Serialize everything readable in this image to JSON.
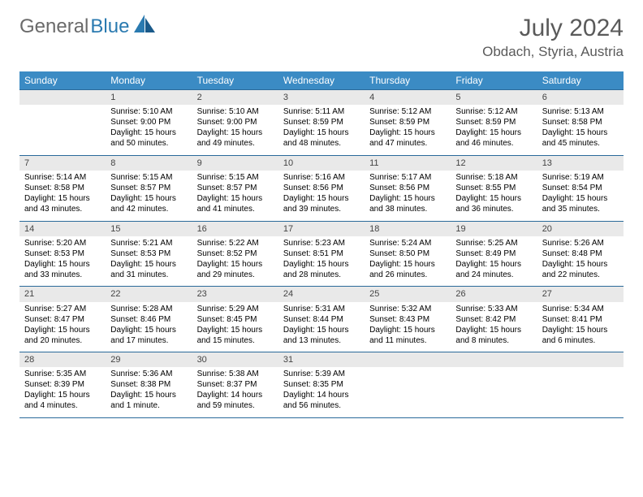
{
  "logo": {
    "part1": "General",
    "part2": "Blue"
  },
  "title": "July 2024",
  "location": "Obdach, Styria, Austria",
  "weekday_headers": [
    "Sunday",
    "Monday",
    "Tuesday",
    "Wednesday",
    "Thursday",
    "Friday",
    "Saturday"
  ],
  "header_bg": "#3b8bc4",
  "header_fg": "#ffffff",
  "daynum_bg": "#e9e9e9",
  "border_color": "#2a6a9a",
  "text_color": "#000000",
  "title_color": "#5a5a5a",
  "weeks": [
    {
      "days": [
        {
          "num": "",
          "lines": []
        },
        {
          "num": "1",
          "lines": [
            "Sunrise: 5:10 AM",
            "Sunset: 9:00 PM",
            "Daylight: 15 hours",
            "and 50 minutes."
          ]
        },
        {
          "num": "2",
          "lines": [
            "Sunrise: 5:10 AM",
            "Sunset: 9:00 PM",
            "Daylight: 15 hours",
            "and 49 minutes."
          ]
        },
        {
          "num": "3",
          "lines": [
            "Sunrise: 5:11 AM",
            "Sunset: 8:59 PM",
            "Daylight: 15 hours",
            "and 48 minutes."
          ]
        },
        {
          "num": "4",
          "lines": [
            "Sunrise: 5:12 AM",
            "Sunset: 8:59 PM",
            "Daylight: 15 hours",
            "and 47 minutes."
          ]
        },
        {
          "num": "5",
          "lines": [
            "Sunrise: 5:12 AM",
            "Sunset: 8:59 PM",
            "Daylight: 15 hours",
            "and 46 minutes."
          ]
        },
        {
          "num": "6",
          "lines": [
            "Sunrise: 5:13 AM",
            "Sunset: 8:58 PM",
            "Daylight: 15 hours",
            "and 45 minutes."
          ]
        }
      ]
    },
    {
      "days": [
        {
          "num": "7",
          "lines": [
            "Sunrise: 5:14 AM",
            "Sunset: 8:58 PM",
            "Daylight: 15 hours",
            "and 43 minutes."
          ]
        },
        {
          "num": "8",
          "lines": [
            "Sunrise: 5:15 AM",
            "Sunset: 8:57 PM",
            "Daylight: 15 hours",
            "and 42 minutes."
          ]
        },
        {
          "num": "9",
          "lines": [
            "Sunrise: 5:15 AM",
            "Sunset: 8:57 PM",
            "Daylight: 15 hours",
            "and 41 minutes."
          ]
        },
        {
          "num": "10",
          "lines": [
            "Sunrise: 5:16 AM",
            "Sunset: 8:56 PM",
            "Daylight: 15 hours",
            "and 39 minutes."
          ]
        },
        {
          "num": "11",
          "lines": [
            "Sunrise: 5:17 AM",
            "Sunset: 8:56 PM",
            "Daylight: 15 hours",
            "and 38 minutes."
          ]
        },
        {
          "num": "12",
          "lines": [
            "Sunrise: 5:18 AM",
            "Sunset: 8:55 PM",
            "Daylight: 15 hours",
            "and 36 minutes."
          ]
        },
        {
          "num": "13",
          "lines": [
            "Sunrise: 5:19 AM",
            "Sunset: 8:54 PM",
            "Daylight: 15 hours",
            "and 35 minutes."
          ]
        }
      ]
    },
    {
      "days": [
        {
          "num": "14",
          "lines": [
            "Sunrise: 5:20 AM",
            "Sunset: 8:53 PM",
            "Daylight: 15 hours",
            "and 33 minutes."
          ]
        },
        {
          "num": "15",
          "lines": [
            "Sunrise: 5:21 AM",
            "Sunset: 8:53 PM",
            "Daylight: 15 hours",
            "and 31 minutes."
          ]
        },
        {
          "num": "16",
          "lines": [
            "Sunrise: 5:22 AM",
            "Sunset: 8:52 PM",
            "Daylight: 15 hours",
            "and 29 minutes."
          ]
        },
        {
          "num": "17",
          "lines": [
            "Sunrise: 5:23 AM",
            "Sunset: 8:51 PM",
            "Daylight: 15 hours",
            "and 28 minutes."
          ]
        },
        {
          "num": "18",
          "lines": [
            "Sunrise: 5:24 AM",
            "Sunset: 8:50 PM",
            "Daylight: 15 hours",
            "and 26 minutes."
          ]
        },
        {
          "num": "19",
          "lines": [
            "Sunrise: 5:25 AM",
            "Sunset: 8:49 PM",
            "Daylight: 15 hours",
            "and 24 minutes."
          ]
        },
        {
          "num": "20",
          "lines": [
            "Sunrise: 5:26 AM",
            "Sunset: 8:48 PM",
            "Daylight: 15 hours",
            "and 22 minutes."
          ]
        }
      ]
    },
    {
      "days": [
        {
          "num": "21",
          "lines": [
            "Sunrise: 5:27 AM",
            "Sunset: 8:47 PM",
            "Daylight: 15 hours",
            "and 20 minutes."
          ]
        },
        {
          "num": "22",
          "lines": [
            "Sunrise: 5:28 AM",
            "Sunset: 8:46 PM",
            "Daylight: 15 hours",
            "and 17 minutes."
          ]
        },
        {
          "num": "23",
          "lines": [
            "Sunrise: 5:29 AM",
            "Sunset: 8:45 PM",
            "Daylight: 15 hours",
            "and 15 minutes."
          ]
        },
        {
          "num": "24",
          "lines": [
            "Sunrise: 5:31 AM",
            "Sunset: 8:44 PM",
            "Daylight: 15 hours",
            "and 13 minutes."
          ]
        },
        {
          "num": "25",
          "lines": [
            "Sunrise: 5:32 AM",
            "Sunset: 8:43 PM",
            "Daylight: 15 hours",
            "and 11 minutes."
          ]
        },
        {
          "num": "26",
          "lines": [
            "Sunrise: 5:33 AM",
            "Sunset: 8:42 PM",
            "Daylight: 15 hours",
            "and 8 minutes."
          ]
        },
        {
          "num": "27",
          "lines": [
            "Sunrise: 5:34 AM",
            "Sunset: 8:41 PM",
            "Daylight: 15 hours",
            "and 6 minutes."
          ]
        }
      ]
    },
    {
      "days": [
        {
          "num": "28",
          "lines": [
            "Sunrise: 5:35 AM",
            "Sunset: 8:39 PM",
            "Daylight: 15 hours",
            "and 4 minutes."
          ]
        },
        {
          "num": "29",
          "lines": [
            "Sunrise: 5:36 AM",
            "Sunset: 8:38 PM",
            "Daylight: 15 hours",
            "and 1 minute."
          ]
        },
        {
          "num": "30",
          "lines": [
            "Sunrise: 5:38 AM",
            "Sunset: 8:37 PM",
            "Daylight: 14 hours",
            "and 59 minutes."
          ]
        },
        {
          "num": "31",
          "lines": [
            "Sunrise: 5:39 AM",
            "Sunset: 8:35 PM",
            "Daylight: 14 hours",
            "and 56 minutes."
          ]
        },
        {
          "num": "",
          "lines": []
        },
        {
          "num": "",
          "lines": []
        },
        {
          "num": "",
          "lines": []
        }
      ]
    }
  ]
}
